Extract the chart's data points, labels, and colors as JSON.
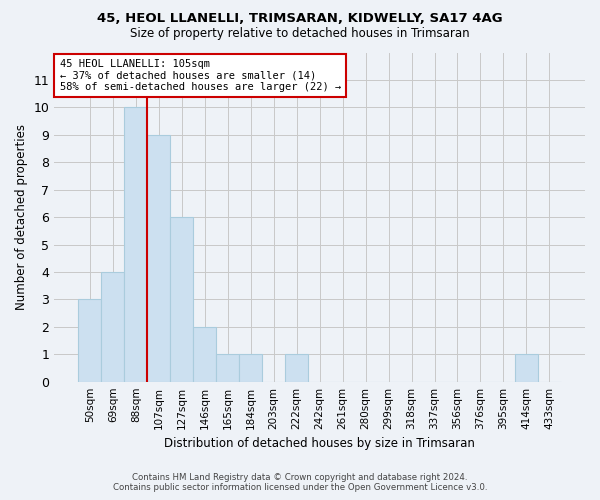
{
  "title1": "45, HEOL LLANELLI, TRIMSARAN, KIDWELLY, SA17 4AG",
  "title2": "Size of property relative to detached houses in Trimsaran",
  "xlabel": "Distribution of detached houses by size in Trimsaran",
  "ylabel": "Number of detached properties",
  "categories": [
    "50sqm",
    "69sqm",
    "88sqm",
    "107sqm",
    "127sqm",
    "146sqm",
    "165sqm",
    "184sqm",
    "203sqm",
    "222sqm",
    "242sqm",
    "261sqm",
    "280sqm",
    "299sqm",
    "318sqm",
    "337sqm",
    "356sqm",
    "376sqm",
    "395sqm",
    "414sqm",
    "433sqm"
  ],
  "values": [
    3,
    4,
    10,
    9,
    6,
    2,
    1,
    1,
    0,
    1,
    0,
    0,
    0,
    0,
    0,
    0,
    0,
    0,
    0,
    1,
    0
  ],
  "bar_color": "#cce0f0",
  "bar_edge_color": "#aaccdd",
  "vline_index": 2,
  "annotation_line1": "45 HEOL LLANELLI: 105sqm",
  "annotation_line2": "← 37% of detached houses are smaller (14)",
  "annotation_line3": "58% of semi-detached houses are larger (22) →",
  "annotation_box_color": "#cc0000",
  "vline_color": "#cc0000",
  "ylim": [
    0,
    12
  ],
  "yticks": [
    0,
    1,
    2,
    3,
    4,
    5,
    6,
    7,
    8,
    9,
    10,
    11
  ],
  "footer1": "Contains HM Land Registry data © Crown copyright and database right 2024.",
  "footer2": "Contains public sector information licensed under the Open Government Licence v3.0.",
  "bg_color": "#eef2f7",
  "plot_bg_color": "#eef2f7",
  "grid_color": "#c8c8c8"
}
